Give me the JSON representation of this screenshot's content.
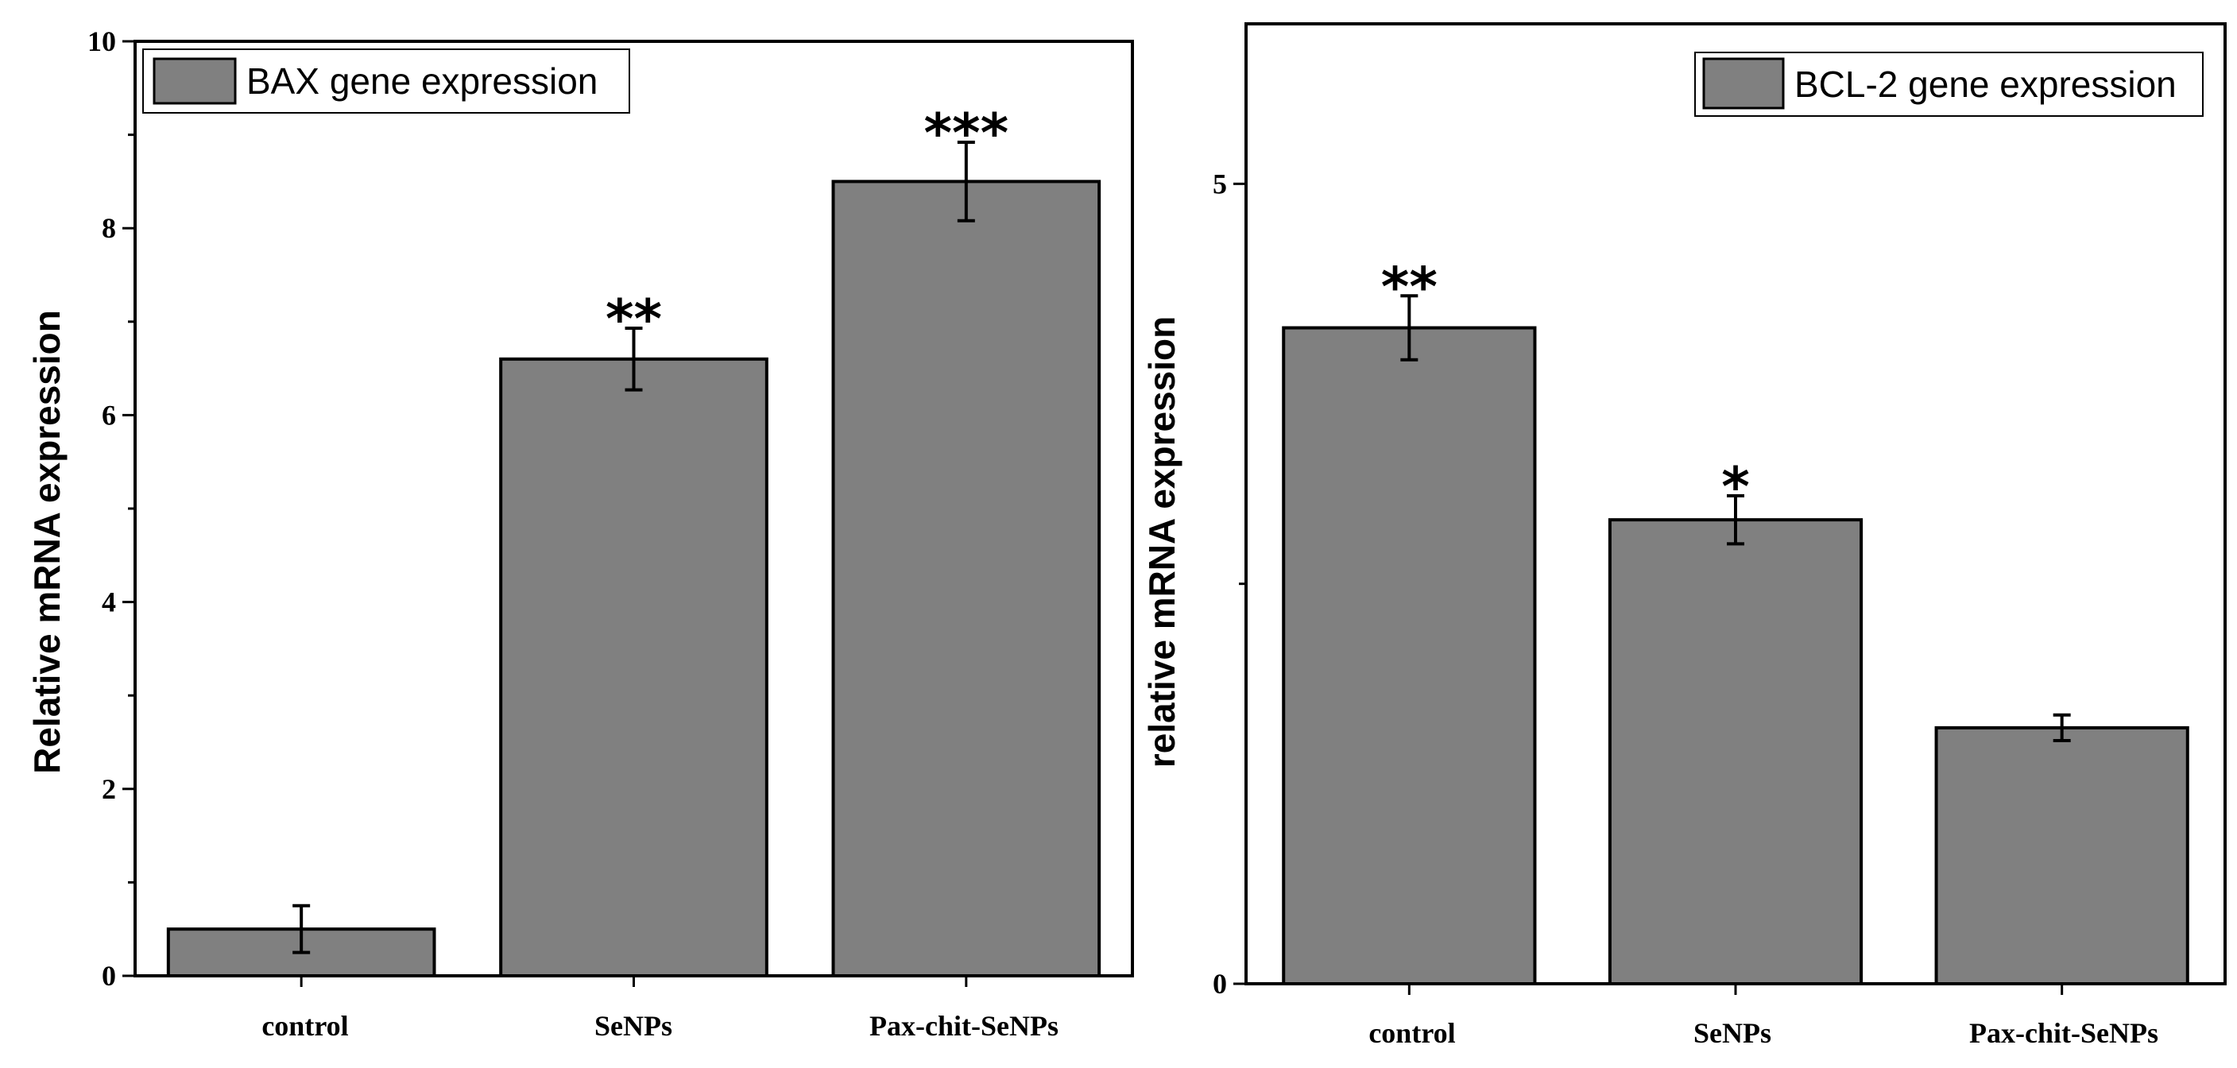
{
  "figure": {
    "colors": {
      "bar_fill": "#808080",
      "bar_stroke": "#000000",
      "axis": "#000000",
      "background": "#ffffff"
    }
  },
  "chart_data": [
    {
      "type": "bar",
      "title": "",
      "legend_label": "BAX gene expression",
      "legend_position": "top-left",
      "xlabel": "",
      "ylabel": "Relative mRNA expression",
      "categories": [
        "control",
        "SeNPs",
        "Pax-chit-SeNPs"
      ],
      "values": [
        0.5,
        6.6,
        8.5
      ],
      "errors": [
        0.25,
        0.33,
        0.42
      ],
      "significance": [
        "",
        "**",
        "***"
      ],
      "ylim": [
        0,
        10
      ],
      "yticks": [
        0,
        2,
        4,
        6,
        8,
        10
      ],
      "ytick_labels": [
        "0",
        "2",
        "4",
        "6",
        "8",
        "10"
      ],
      "minor_ticks": true,
      "grid": false
    },
    {
      "type": "bar",
      "title": "",
      "legend_label": "BCL-2 gene expression",
      "legend_position": "top-right",
      "xlabel": "",
      "ylabel": "relative mRNA expression",
      "categories": [
        "control",
        "SeNPs",
        "Pax-chit-SeNPs"
      ],
      "values": [
        4.1,
        2.9,
        1.6
      ],
      "errors": [
        0.2,
        0.15,
        0.08
      ],
      "significance": [
        "**",
        "*",
        ""
      ],
      "ylim": [
        0,
        6
      ],
      "yticks": [
        0,
        5
      ],
      "ytick_labels": [
        "0",
        "5"
      ],
      "minor_ticks": true,
      "grid": false
    }
  ]
}
